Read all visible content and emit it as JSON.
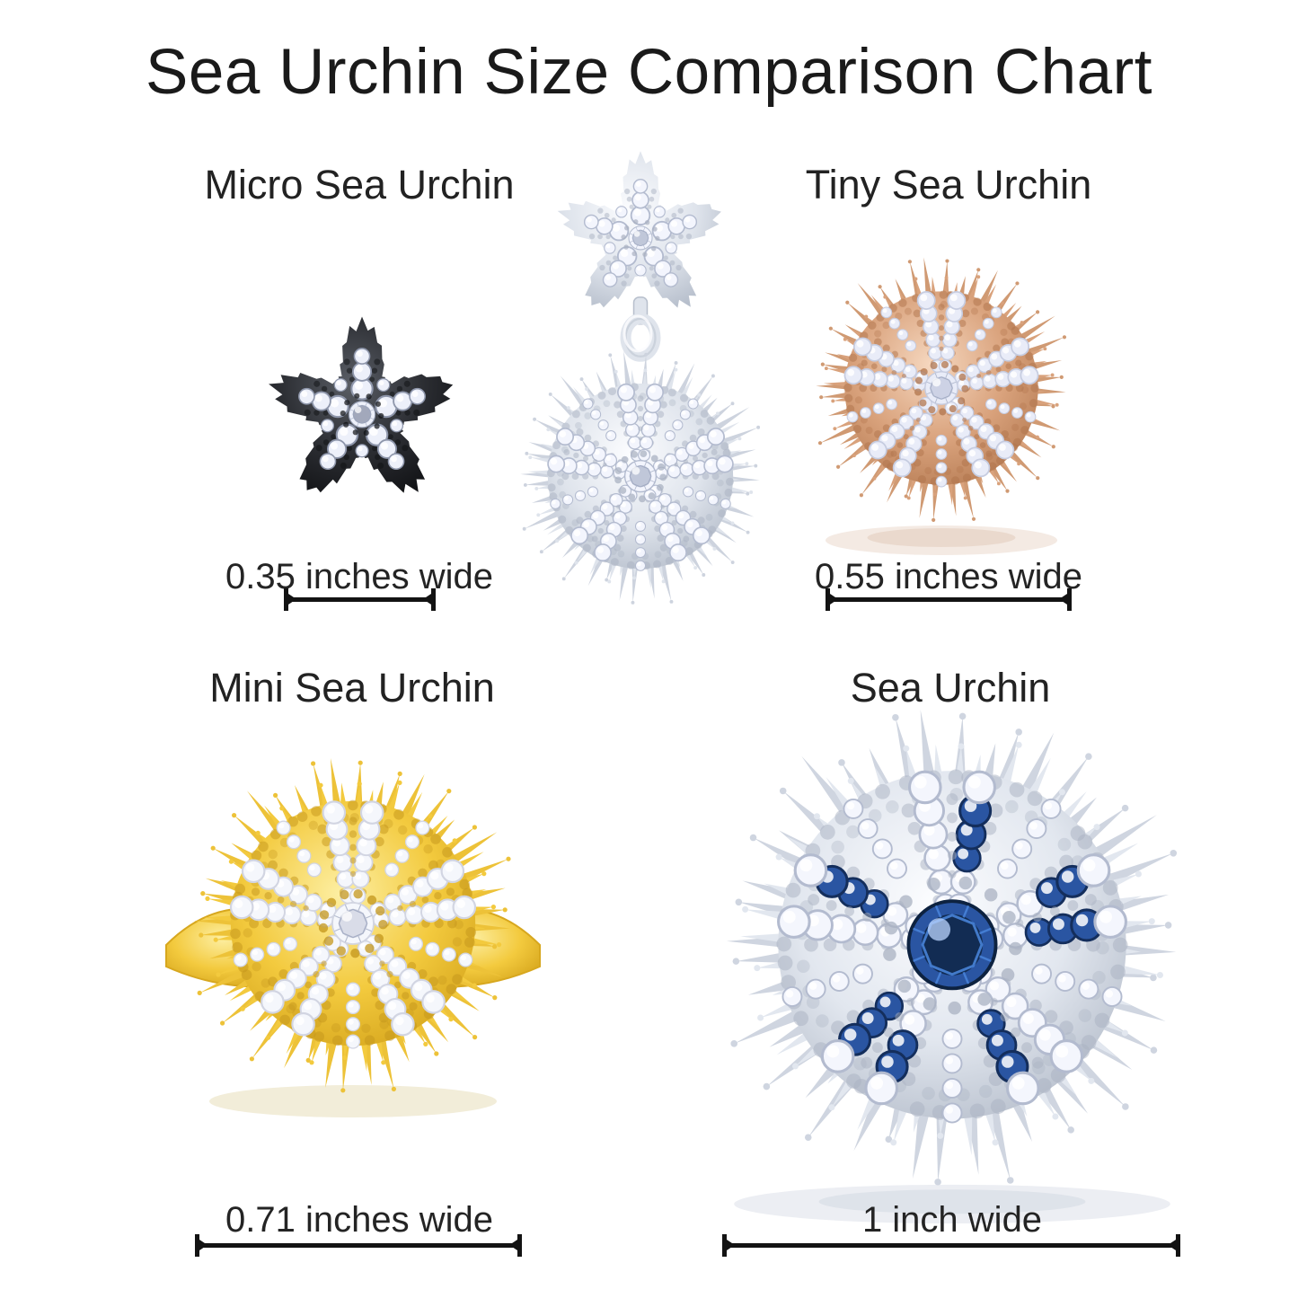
{
  "title": "Sea Urchin Size Comparison Chart",
  "pieces": {
    "micro": {
      "label": "Micro Sea Urchin",
      "size_label": "0.35 inches wide",
      "palette": "black_rhodium",
      "type": "star"
    },
    "dangle": {
      "palette": "silver",
      "type": "dangle"
    },
    "tiny": {
      "label": "Tiny Sea Urchin",
      "size_label": "0.55 inches wide",
      "palette": "rose_gold",
      "type": "dome"
    },
    "mini": {
      "label": "Mini Sea Urchin",
      "size_label": "0.71 inches wide",
      "palette": "yellow_gold",
      "type": "ring"
    },
    "full": {
      "label": "Sea Urchin",
      "size_label": "1 inch wide",
      "palette": "silver_sapphire",
      "type": "dome_sapphire"
    }
  },
  "palettes": {
    "black_rhodium": {
      "light": "#5a5e66",
      "mid": "#2b2d32",
      "dark": "#131417",
      "spike": "#36393f",
      "bead": "#0e0f12",
      "stone": "#edf0fa",
      "stone_edge": "#8e96ab"
    },
    "silver": {
      "light": "#fcfdff",
      "mid": "#dfe4ec",
      "dark": "#b7bfcc",
      "spike": "#cdd3de",
      "bead": "#a9b1c1",
      "stone": "#f3f5fd",
      "stone_edge": "#b3bbcf"
    },
    "rose_gold": {
      "light": "#f6d8c0",
      "mid": "#d9a27c",
      "dark": "#b87e56",
      "spike": "#d09a73",
      "bead": "#b0744c",
      "stone": "#e9ecf8",
      "stone_edge": "#c6cce0"
    },
    "yellow_gold": {
      "light": "#fdefa3",
      "mid": "#f3ca3e",
      "dark": "#d7a71e",
      "spike": "#edc238",
      "bead": "#c3961b",
      "stone": "#f5f7fc",
      "stone_edge": "#d2d5e2"
    },
    "silver_sapphire": {
      "light": "#fcfdff",
      "mid": "#e2e7ef",
      "dark": "#b7bfcc",
      "spike": "#cfd5e0",
      "bead": "#a9b1c1",
      "stone": "#f4f6fd",
      "stone_edge": "#b3bbcf",
      "accent": "#2a55a2",
      "accent_edge": "#142e5c",
      "center": "#1c4d97",
      "center_dark": "#0d2240",
      "center_facet": "#4f8fe8"
    }
  },
  "measure_style": {
    "line_color": "#131313",
    "text_color": "#242424"
  }
}
